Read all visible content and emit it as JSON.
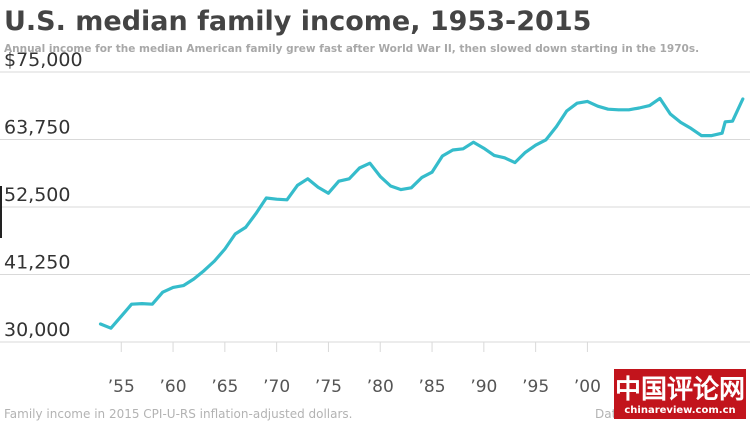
{
  "chart_data": {
    "type": "line",
    "title": "U.S. median family income, 1953-2015",
    "subtitle": "Annual income for the median American family grew fast after World War II, then slowed down starting in the 1970s.",
    "xlabel": "",
    "ylabel": "",
    "x": [
      1953,
      1954,
      1955,
      1956,
      1957,
      1958,
      1959,
      1960,
      1961,
      1962,
      1963,
      1964,
      1965,
      1966,
      1967,
      1968,
      1969,
      1970,
      1971,
      1972,
      1973,
      1974,
      1975,
      1976,
      1977,
      1978,
      1979,
      1980,
      1981,
      1982,
      1983,
      1984,
      1985,
      1986,
      1987,
      1988,
      1989,
      1990,
      1991,
      1992,
      1993,
      1994,
      1995,
      1996,
      1997,
      1998,
      1999,
      2000,
      2001,
      2002,
      2003,
      2004,
      2005,
      2006,
      2007,
      2008,
      2009,
      2010,
      2011,
      2012,
      2013,
      2013.3,
      2014,
      2015
    ],
    "series": [
      {
        "values": [
          33000,
          32300,
          34300,
          36300,
          36400,
          36300,
          38300,
          39100,
          39400,
          40500,
          41900,
          43500,
          45500,
          48000,
          49100,
          51400,
          54000,
          53800,
          53700,
          56100,
          57200,
          55800,
          54800,
          56800,
          57200,
          59000,
          59800,
          57600,
          56000,
          55400,
          55700,
          57400,
          58300,
          61000,
          62000,
          62200,
          63300,
          62300,
          61100,
          60700,
          59900,
          61600,
          62800,
          63700,
          65900,
          68500,
          69800,
          70100,
          69300,
          68800,
          68700,
          68700,
          69000,
          69400,
          70600,
          68000,
          66600,
          65600,
          64400,
          64400,
          64800,
          66700,
          66800,
          70500
        ]
      }
    ],
    "xlim": [
      1951.5,
      2015.5
    ],
    "ylim": [
      30000,
      75000
    ],
    "yticks": [
      30000,
      41250,
      52500,
      63750,
      75000
    ],
    "ytick_labels": [
      "30,000",
      "41,250",
      "52,500",
      "63,750",
      "$75,000"
    ],
    "xticks": [
      1955,
      1960,
      1965,
      1970,
      1975,
      1980,
      1985,
      1990,
      1995,
      2000
    ],
    "xtick_labels": [
      "’55",
      "’60",
      "’65",
      "’70",
      "’75",
      "’80",
      "’85",
      "’90",
      "’95",
      "’00"
    ],
    "grid": true,
    "legend": "none",
    "colors": {
      "line": "#35bccb",
      "grid": "#d9d9d9",
      "watermark_bg": "#c2141c"
    },
    "footnote": "Family income in 2015 CPI-U-RS inflation-adjusted dollars.",
    "source_partial": "Data",
    "watermark": {
      "chinese": "中国评论网",
      "url": "chinareview.com.cn"
    }
  }
}
